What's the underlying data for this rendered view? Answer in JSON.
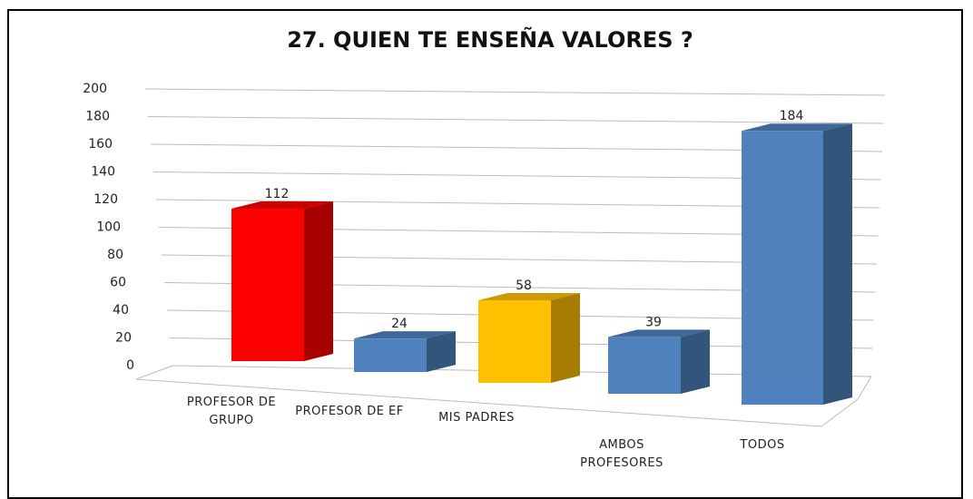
{
  "chart_data": {
    "type": "bar3d",
    "title": "27. QUIEN TE ENSEÑA VALORES ?",
    "categories": [
      "PROFESOR DE GRUPO",
      "PROFESOR DE EF",
      "MIS PADRES",
      "AMBOS PROFESORES",
      "TODOS"
    ],
    "values": [
      112,
      24,
      58,
      39,
      184
    ],
    "colors": [
      "#ff0000",
      "#4f81bd",
      "#ffc000",
      "#4f81bd",
      "#4f81bd"
    ],
    "ylim": [
      0,
      200
    ],
    "yticks": [
      0,
      20,
      40,
      60,
      80,
      100,
      120,
      140,
      160,
      180,
      200
    ],
    "grid": true
  }
}
